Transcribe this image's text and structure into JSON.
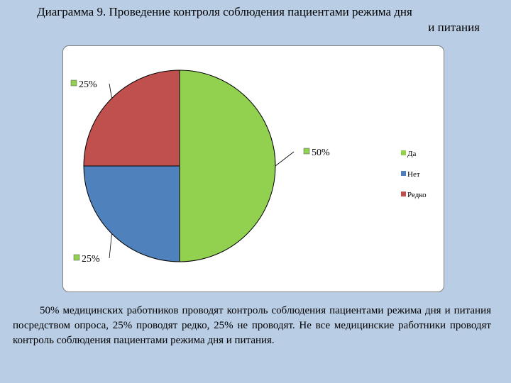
{
  "title": {
    "line1": "Диаграмма 9. Проведение контроля соблюдения пациентами режима дня",
    "line2": "и питания"
  },
  "chart_data": {
    "type": "pie",
    "categories": [
      "Да",
      "Нет",
      "Редко"
    ],
    "values": [
      50,
      25,
      25
    ],
    "data_labels": [
      "50%",
      "25%",
      "25%"
    ],
    "colors": [
      "#92d050",
      "#4f81bd",
      "#c0504d"
    ],
    "legend": [
      "Да",
      "Нет",
      "Редко"
    ],
    "legend_position": "right"
  },
  "caption": "50% медицинских работников проводят контроль соблюдения пациентами режима дня и питания посредством опроса, 25% проводят редко, 25% не проводят. Не все медицинские работники проводят контроль соблюдения пациентами режима дня и питания."
}
